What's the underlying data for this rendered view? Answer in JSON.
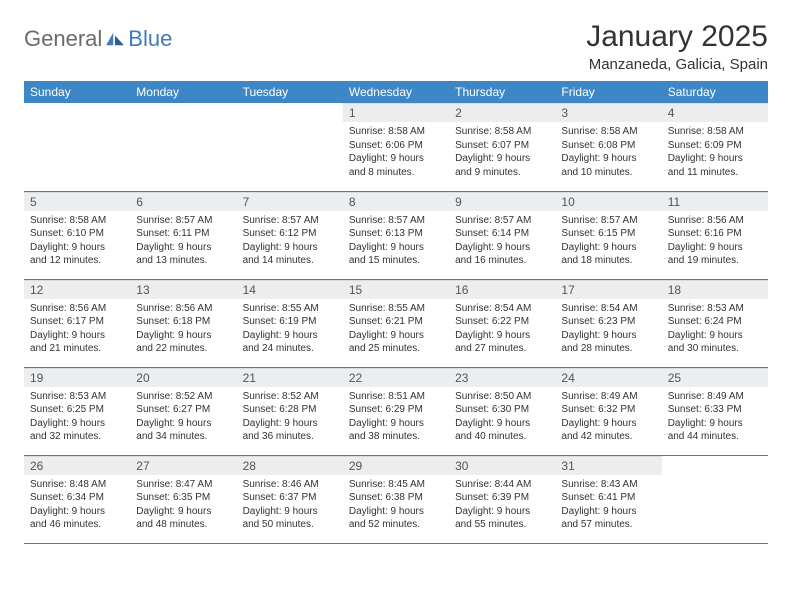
{
  "logo": {
    "part1": "General",
    "part2": "Blue"
  },
  "title": "January 2025",
  "location": "Manzaneda, Galicia, Spain",
  "colors": {
    "header_bg": "#3d87c7",
    "daynum_bg": "#ebedef",
    "accent": "#3d7cc0",
    "logo_gray": "#6b6b6b"
  },
  "weekdays": [
    "Sunday",
    "Monday",
    "Tuesday",
    "Wednesday",
    "Thursday",
    "Friday",
    "Saturday"
  ],
  "weeks": [
    [
      {
        "empty": true
      },
      {
        "empty": true
      },
      {
        "empty": true
      },
      {
        "num": "1",
        "sunrise": "Sunrise: 8:58 AM",
        "sunset": "Sunset: 6:06 PM",
        "day1": "Daylight: 9 hours",
        "day2": "and 8 minutes."
      },
      {
        "num": "2",
        "sunrise": "Sunrise: 8:58 AM",
        "sunset": "Sunset: 6:07 PM",
        "day1": "Daylight: 9 hours",
        "day2": "and 9 minutes."
      },
      {
        "num": "3",
        "sunrise": "Sunrise: 8:58 AM",
        "sunset": "Sunset: 6:08 PM",
        "day1": "Daylight: 9 hours",
        "day2": "and 10 minutes."
      },
      {
        "num": "4",
        "sunrise": "Sunrise: 8:58 AM",
        "sunset": "Sunset: 6:09 PM",
        "day1": "Daylight: 9 hours",
        "day2": "and 11 minutes."
      }
    ],
    [
      {
        "num": "5",
        "sunrise": "Sunrise: 8:58 AM",
        "sunset": "Sunset: 6:10 PM",
        "day1": "Daylight: 9 hours",
        "day2": "and 12 minutes."
      },
      {
        "num": "6",
        "sunrise": "Sunrise: 8:57 AM",
        "sunset": "Sunset: 6:11 PM",
        "day1": "Daylight: 9 hours",
        "day2": "and 13 minutes."
      },
      {
        "num": "7",
        "sunrise": "Sunrise: 8:57 AM",
        "sunset": "Sunset: 6:12 PM",
        "day1": "Daylight: 9 hours",
        "day2": "and 14 minutes."
      },
      {
        "num": "8",
        "sunrise": "Sunrise: 8:57 AM",
        "sunset": "Sunset: 6:13 PM",
        "day1": "Daylight: 9 hours",
        "day2": "and 15 minutes."
      },
      {
        "num": "9",
        "sunrise": "Sunrise: 8:57 AM",
        "sunset": "Sunset: 6:14 PM",
        "day1": "Daylight: 9 hours",
        "day2": "and 16 minutes."
      },
      {
        "num": "10",
        "sunrise": "Sunrise: 8:57 AM",
        "sunset": "Sunset: 6:15 PM",
        "day1": "Daylight: 9 hours",
        "day2": "and 18 minutes."
      },
      {
        "num": "11",
        "sunrise": "Sunrise: 8:56 AM",
        "sunset": "Sunset: 6:16 PM",
        "day1": "Daylight: 9 hours",
        "day2": "and 19 minutes."
      }
    ],
    [
      {
        "num": "12",
        "sunrise": "Sunrise: 8:56 AM",
        "sunset": "Sunset: 6:17 PM",
        "day1": "Daylight: 9 hours",
        "day2": "and 21 minutes."
      },
      {
        "num": "13",
        "sunrise": "Sunrise: 8:56 AM",
        "sunset": "Sunset: 6:18 PM",
        "day1": "Daylight: 9 hours",
        "day2": "and 22 minutes."
      },
      {
        "num": "14",
        "sunrise": "Sunrise: 8:55 AM",
        "sunset": "Sunset: 6:19 PM",
        "day1": "Daylight: 9 hours",
        "day2": "and 24 minutes."
      },
      {
        "num": "15",
        "sunrise": "Sunrise: 8:55 AM",
        "sunset": "Sunset: 6:21 PM",
        "day1": "Daylight: 9 hours",
        "day2": "and 25 minutes."
      },
      {
        "num": "16",
        "sunrise": "Sunrise: 8:54 AM",
        "sunset": "Sunset: 6:22 PM",
        "day1": "Daylight: 9 hours",
        "day2": "and 27 minutes."
      },
      {
        "num": "17",
        "sunrise": "Sunrise: 8:54 AM",
        "sunset": "Sunset: 6:23 PM",
        "day1": "Daylight: 9 hours",
        "day2": "and 28 minutes."
      },
      {
        "num": "18",
        "sunrise": "Sunrise: 8:53 AM",
        "sunset": "Sunset: 6:24 PM",
        "day1": "Daylight: 9 hours",
        "day2": "and 30 minutes."
      }
    ],
    [
      {
        "num": "19",
        "sunrise": "Sunrise: 8:53 AM",
        "sunset": "Sunset: 6:25 PM",
        "day1": "Daylight: 9 hours",
        "day2": "and 32 minutes."
      },
      {
        "num": "20",
        "sunrise": "Sunrise: 8:52 AM",
        "sunset": "Sunset: 6:27 PM",
        "day1": "Daylight: 9 hours",
        "day2": "and 34 minutes."
      },
      {
        "num": "21",
        "sunrise": "Sunrise: 8:52 AM",
        "sunset": "Sunset: 6:28 PM",
        "day1": "Daylight: 9 hours",
        "day2": "and 36 minutes."
      },
      {
        "num": "22",
        "sunrise": "Sunrise: 8:51 AM",
        "sunset": "Sunset: 6:29 PM",
        "day1": "Daylight: 9 hours",
        "day2": "and 38 minutes."
      },
      {
        "num": "23",
        "sunrise": "Sunrise: 8:50 AM",
        "sunset": "Sunset: 6:30 PM",
        "day1": "Daylight: 9 hours",
        "day2": "and 40 minutes."
      },
      {
        "num": "24",
        "sunrise": "Sunrise: 8:49 AM",
        "sunset": "Sunset: 6:32 PM",
        "day1": "Daylight: 9 hours",
        "day2": "and 42 minutes."
      },
      {
        "num": "25",
        "sunrise": "Sunrise: 8:49 AM",
        "sunset": "Sunset: 6:33 PM",
        "day1": "Daylight: 9 hours",
        "day2": "and 44 minutes."
      }
    ],
    [
      {
        "num": "26",
        "sunrise": "Sunrise: 8:48 AM",
        "sunset": "Sunset: 6:34 PM",
        "day1": "Daylight: 9 hours",
        "day2": "and 46 minutes."
      },
      {
        "num": "27",
        "sunrise": "Sunrise: 8:47 AM",
        "sunset": "Sunset: 6:35 PM",
        "day1": "Daylight: 9 hours",
        "day2": "and 48 minutes."
      },
      {
        "num": "28",
        "sunrise": "Sunrise: 8:46 AM",
        "sunset": "Sunset: 6:37 PM",
        "day1": "Daylight: 9 hours",
        "day2": "and 50 minutes."
      },
      {
        "num": "29",
        "sunrise": "Sunrise: 8:45 AM",
        "sunset": "Sunset: 6:38 PM",
        "day1": "Daylight: 9 hours",
        "day2": "and 52 minutes."
      },
      {
        "num": "30",
        "sunrise": "Sunrise: 8:44 AM",
        "sunset": "Sunset: 6:39 PM",
        "day1": "Daylight: 9 hours",
        "day2": "and 55 minutes."
      },
      {
        "num": "31",
        "sunrise": "Sunrise: 8:43 AM",
        "sunset": "Sunset: 6:41 PM",
        "day1": "Daylight: 9 hours",
        "day2": "and 57 minutes."
      },
      {
        "empty": true
      }
    ]
  ]
}
